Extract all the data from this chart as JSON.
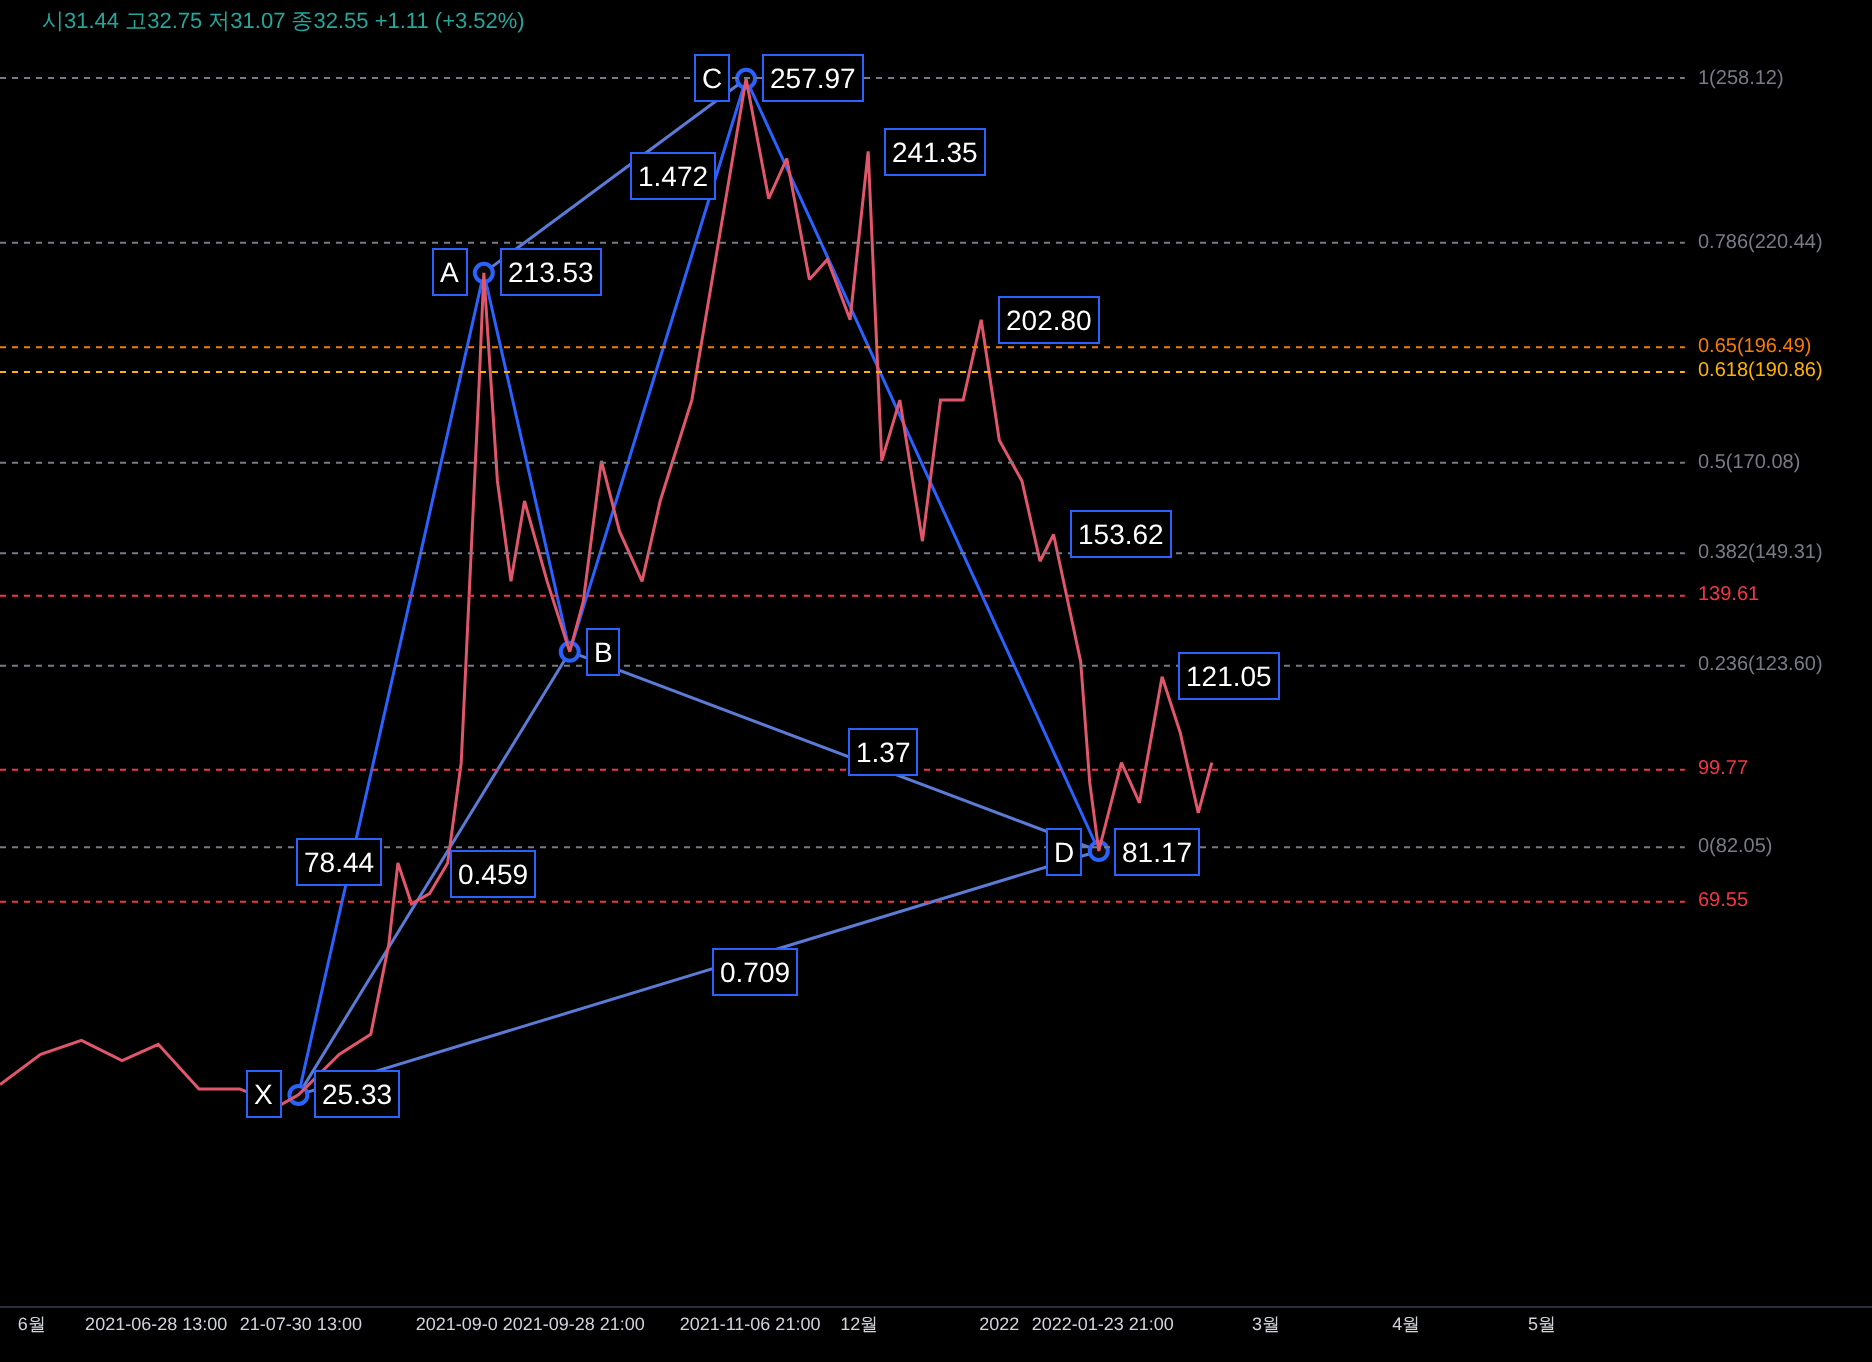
{
  "chart_data": {
    "type": "line",
    "subtitle": "시31.44 고32.75 저31.07 종32.55 +1.11 (+3.52%)",
    "xlim": [
      "2021-05-25",
      "2022-07-13"
    ],
    "ylim": [
      -23,
      276
    ],
    "tick_labels": "x",
    "grid": false,
    "xticks": [
      {
        "value": "2021-06-01",
        "label": "6월"
      },
      {
        "value": "2021-06-28T13:00",
        "label": "2021-06-28 13:00"
      },
      {
        "value": "2021-07-30T13:00",
        "label": "21-07-30 13:00"
      },
      {
        "value": "2021-09-03",
        "label": "2021-09-0"
      },
      {
        "value": "2021-09-28T21:00",
        "label": "2021-09-28 21:00"
      },
      {
        "value": "2021-11-06T21:00",
        "label": "2021-11-06 21:00"
      },
      {
        "value": "2021-12-01",
        "label": "12월"
      },
      {
        "value": "2022-01-01",
        "label": "2022"
      },
      {
        "value": "2022-01-23T21:00",
        "label": "2022-01-23 21:00"
      },
      {
        "value": "2022-03-01",
        "label": "3월"
      },
      {
        "value": "2022-04-01",
        "label": "4월"
      },
      {
        "value": "2022-05-01",
        "label": "5월"
      }
    ],
    "series": [
      {
        "color": "#e0566b",
        "marker": "none",
        "x": [
          "2021-05-25",
          "2021-06-03",
          "2021-06-12",
          "2021-06-21",
          "2021-06-29",
          "2021-07-08",
          "2021-07-17",
          "2021-07-26",
          "2021-07-30",
          "2021-08-08",
          "2021-08-15",
          "2021-08-19",
          "2021-08-21",
          "2021-08-24",
          "2021-08-28",
          "2021-09-01",
          "2021-09-04",
          "2021-09-08",
          "2021-09-09",
          "2021-09-12",
          "2021-09-15",
          "2021-09-18",
          "2021-09-23",
          "2021-09-28",
          "2021-10-01",
          "2021-10-05",
          "2021-10-09",
          "2021-10-14",
          "2021-10-18",
          "2021-10-25",
          "2021-10-31",
          "2021-11-06",
          "2021-11-11",
          "2021-11-15",
          "2021-11-20",
          "2021-11-24",
          "2021-11-29",
          "2021-12-03",
          "2021-12-06",
          "2021-12-10",
          "2021-12-15",
          "2021-12-19",
          "2021-12-24",
          "2021-12-28",
          "2022-01-01",
          "2022-01-06",
          "2022-01-10",
          "2022-01-13",
          "2022-01-19",
          "2022-01-21",
          "2022-01-23",
          "2022-01-28",
          "2022-02-01",
          "2022-02-06",
          "2022-02-10",
          "2022-02-14",
          "2022-02-17"
        ],
        "values": [
          27.7,
          34.6,
          37.8,
          33.2,
          36.9,
          26.7,
          26.7,
          23.0,
          25.33,
          34.6,
          39.2,
          59.9,
          78.44,
          69.1,
          71.4,
          78.4,
          101.4,
          189,
          213.53,
          165.9,
          142.9,
          161.3,
          142.9,
          126.8,
          138.3,
          170.5,
          154.4,
          142.9,
          161.3,
          184.4,
          221.2,
          257.97,
          230.5,
          239.7,
          212,
          216.6,
          202.8,
          241.35,
          170.5,
          184.4,
          152.1,
          184.4,
          184.4,
          202.8,
          175.2,
          165.9,
          147.5,
          153.62,
          124.5,
          96.8,
          81.17,
          101.4,
          92.2,
          121.05,
          108.3,
          89.9,
          101.4
        ]
      },
      {
        "color": "#2962ff",
        "marker": "circle",
        "x": [
          "2021-07-30",
          "2021-09-09",
          "2021-09-28",
          "2021-11-06",
          "2022-01-23"
        ],
        "values": [
          25.33,
          213.53,
          126.8,
          257.97,
          81.17
        ]
      },
      {
        "color": "#5b7bd5",
        "marker": "none",
        "x": [
          "2021-07-30",
          "2021-09-28"
        ],
        "values": [
          25.33,
          126.8
        ]
      },
      {
        "color": "#5b7bd5",
        "marker": "none",
        "x": [
          "2021-09-09",
          "2021-11-06"
        ],
        "values": [
          213.53,
          257.97
        ]
      },
      {
        "color": "#5b7bd5",
        "marker": "none",
        "x": [
          "2021-09-28",
          "2022-01-23"
        ],
        "values": [
          126.8,
          81.17
        ]
      },
      {
        "color": "#5b7bd5",
        "marker": "none",
        "x": [
          "2021-07-30",
          "2022-01-23"
        ],
        "values": [
          25.33,
          81.17
        ]
      }
    ],
    "ref_lines": [
      {
        "axis": "y",
        "value": 258.12,
        "label": "1(258.12)",
        "color": "#787b86",
        "line_style": "dotted"
      },
      {
        "axis": "y",
        "value": 220.44,
        "label": "0.786(220.44)",
        "color": "#787b86",
        "line_style": "dotted"
      },
      {
        "axis": "y",
        "value": 196.49,
        "label": "0.65(196.49)",
        "color": "#f57c00",
        "line_style": "dotted"
      },
      {
        "axis": "y",
        "value": 190.86,
        "label": "0.618(190.86)",
        "color": "#ffb300",
        "line_style": "dotted"
      },
      {
        "axis": "y",
        "value": 170.08,
        "label": "0.5(170.08)",
        "color": "#787b86",
        "line_style": "dotted"
      },
      {
        "axis": "y",
        "value": 149.31,
        "label": "0.382(149.31)",
        "color": "#787b86",
        "line_style": "dotted"
      },
      {
        "axis": "y",
        "value": 139.61,
        "label": "139.61",
        "color": "#f23645",
        "line_style": "dotted"
      },
      {
        "axis": "y",
        "value": 123.6,
        "label": "0.236(123.60)",
        "color": "#787b86",
        "line_style": "dotted"
      },
      {
        "axis": "y",
        "value": 99.77,
        "label": "99.77",
        "color": "#f23645",
        "line_style": "dotted"
      },
      {
        "axis": "y",
        "value": 82.05,
        "label": "0(82.05)",
        "color": "#787b86",
        "line_style": "dotted"
      },
      {
        "axis": "y",
        "value": 69.55,
        "label": "69.55",
        "color": "#f23645",
        "line_style": "dotted"
      }
    ],
    "annotations": [
      {
        "text": "1.472",
        "x": "2021-10-08",
        "y": 235.75
      },
      {
        "text": "0.459",
        "x": "2021-08-29",
        "y": 76.1
      },
      {
        "text": "1.37",
        "x": "2021-11-25",
        "y": 104
      },
      {
        "text": "0.709",
        "x": "2021-10-26",
        "y": 53.25
      },
      {
        "text": "257.97",
        "x": "2021-11-06",
        "y": 257.97
      },
      {
        "text": "241.35",
        "x": "2021-12-03",
        "y": 241.35
      },
      {
        "text": "213.53",
        "x": "2021-09-09",
        "y": 213.53
      },
      {
        "text": "202.80",
        "x": "2021-12-28",
        "y": 202.8
      },
      {
        "text": "153.62",
        "x": "2022-01-13",
        "y": 153.62
      },
      {
        "text": "121.05",
        "x": "2022-02-06",
        "y": 121.05
      },
      {
        "text": "81.17",
        "x": "2022-01-23",
        "y": 81.17
      },
      {
        "text": "78.44",
        "x": "2021-08-21",
        "y": 78.44
      },
      {
        "text": "25.33",
        "x": "2021-07-30",
        "y": 25.33
      },
      {
        "text": "X",
        "x": "2021-07-30",
        "y": 25.33
      },
      {
        "text": "A",
        "x": "2021-09-09",
        "y": 213.53
      },
      {
        "text": "B",
        "x": "2021-09-28",
        "y": 126.8
      },
      {
        "text": "C",
        "x": "2021-11-06",
        "y": 257.97
      },
      {
        "text": "D",
        "x": "2022-01-23",
        "y": 81.17
      }
    ]
  }
}
